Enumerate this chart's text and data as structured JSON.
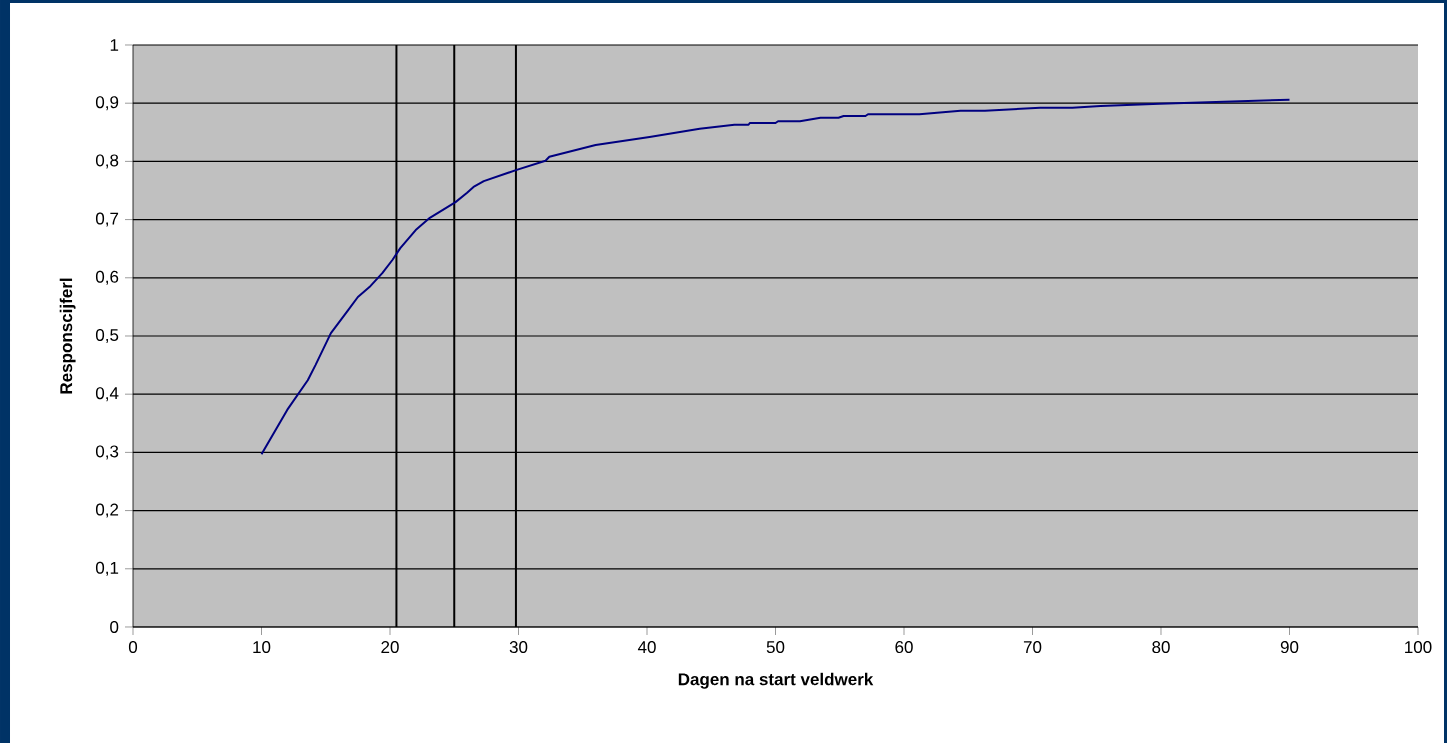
{
  "chart_data": {
    "type": "line",
    "xlabel": "Dagen na start veldwerk",
    "ylabel": "Responscijferl",
    "xlim": [
      0,
      100
    ],
    "ylim": [
      0,
      1
    ],
    "xticks": [
      0,
      10,
      20,
      30,
      40,
      50,
      60,
      70,
      80,
      90,
      100
    ],
    "yticks": [
      0,
      {
        "value": 0.1,
        "label": "0,1"
      },
      {
        "value": 0.2,
        "label": "0,2"
      },
      {
        "value": 0.3,
        "label": "0,3"
      },
      {
        "value": 0.4,
        "label": "0,4"
      },
      {
        "value": 0.5,
        "label": "0,5"
      },
      {
        "value": 0.6,
        "label": "0,6"
      },
      {
        "value": 0.7,
        "label": "0,7"
      },
      {
        "value": 0.8,
        "label": "0,8"
      },
      {
        "value": 0.9,
        "label": "0,9"
      },
      1
    ],
    "grid": "y",
    "marker": "none",
    "line_style": "solid",
    "ref_lines": [
      {
        "axis": "x",
        "value": 20.5,
        "color": "#000000"
      },
      {
        "axis": "x",
        "value": 25,
        "color": "#000000"
      },
      {
        "axis": "x",
        "value": 29.8,
        "color": "#000000"
      }
    ],
    "series": [
      {
        "color": "#000080",
        "x": [
          10,
          12,
          13.6,
          14.2,
          15.4,
          16.7,
          17.5,
          18.4,
          19.4,
          20.2,
          20.8,
          22,
          23.1,
          25.1,
          26,
          26.5,
          27.3,
          29.8,
          32.1,
          32.4,
          36,
          40.2,
          44.1,
          46.8,
          47.9,
          48,
          50,
          50.2,
          51.9,
          53.5,
          54.9,
          55.3,
          57,
          57.2,
          61.2,
          64.4,
          66.3,
          70.6,
          73.1,
          75.3,
          79.9,
          90
        ],
        "values": [
          0.297,
          0.373,
          0.424,
          0.45,
          0.505,
          0.543,
          0.567,
          0.584,
          0.608,
          0.631,
          0.651,
          0.682,
          0.703,
          0.73,
          0.746,
          0.756,
          0.766,
          0.785,
          0.801,
          0.808,
          0.828,
          0.842,
          0.856,
          0.863,
          0.863,
          0.866,
          0.866,
          0.869,
          0.869,
          0.875,
          0.875,
          0.878,
          0.878,
          0.881,
          0.881,
          0.887,
          0.887,
          0.892,
          0.892,
          0.895,
          0.899,
          0.906
        ]
      }
    ]
  }
}
